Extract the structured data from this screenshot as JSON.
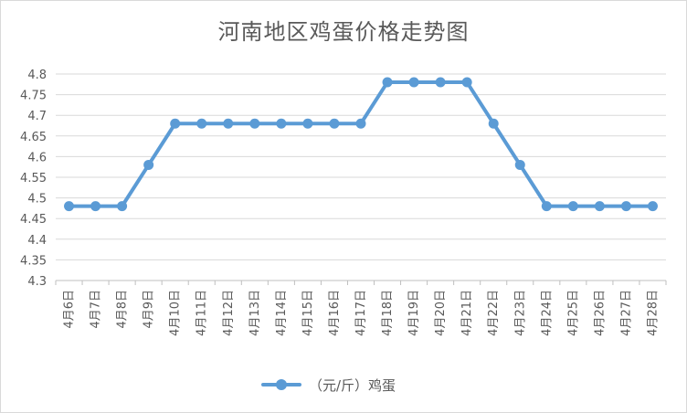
{
  "chart_data": {
    "type": "line",
    "title": "河南地区鸡蛋价格走势图",
    "categories": [
      "4月6日",
      "4月7日",
      "4月8日",
      "4月9日",
      "4月10日",
      "4月11日",
      "4月12日",
      "4月13日",
      "4月14日",
      "4月15日",
      "4月16日",
      "4月17日",
      "4月18日",
      "4月19日",
      "4月20日",
      "4月21日",
      "4月22日",
      "4月23日",
      "4月24日",
      "4月25日",
      "4月26日",
      "4月27日",
      "4月28日"
    ],
    "series": [
      {
        "name": "（元/斤）鸡蛋",
        "values": [
          4.48,
          4.48,
          4.48,
          4.58,
          4.68,
          4.68,
          4.68,
          4.68,
          4.68,
          4.68,
          4.68,
          4.68,
          4.78,
          4.78,
          4.78,
          4.78,
          4.68,
          4.58,
          4.48,
          4.48,
          4.48,
          4.48,
          4.48
        ],
        "color": "#5b9bd5"
      }
    ],
    "yticks": [
      "4.3",
      "4.35",
      "4.4",
      "4.45",
      "4.5",
      "4.55",
      "4.6",
      "4.65",
      "4.7",
      "4.75",
      "4.8"
    ],
    "ylim": [
      4.3,
      4.8
    ],
    "grid": true,
    "legend": "bottom"
  }
}
